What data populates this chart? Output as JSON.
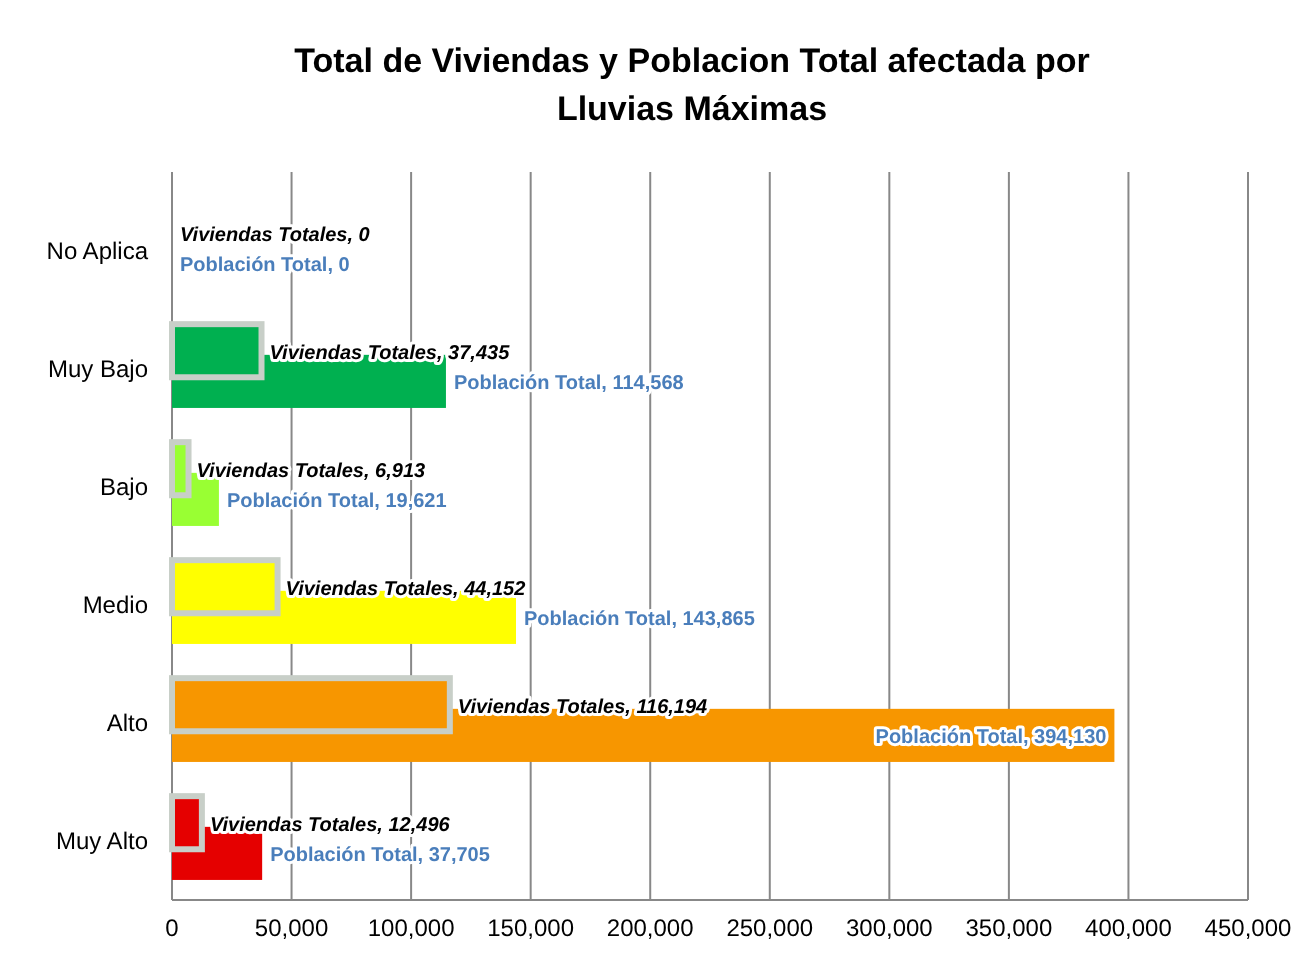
{
  "chart_data": {
    "type": "bar",
    "orientation": "horizontal",
    "title": "Total de Viviendas y Poblacion Total afectada por Lluvias Máximas",
    "categories": [
      "No Aplica",
      "Muy Bajo",
      "Bajo",
      "Medio",
      "Alto",
      "Muy Alto"
    ],
    "series": [
      {
        "values": [
          0,
          37435,
          6913,
          44152,
          116194,
          12496
        ],
        "colors": [
          "#00b050",
          "#00b050",
          "#99ff33",
          "#ffff00",
          "#f79600",
          "#e50000"
        ],
        "value_labels": [
          "Viviendas Totales, 0",
          "Viviendas Totales, 37,435",
          "Viviendas Totales, 6,913",
          "Viviendas Totales, 44,152",
          "Viviendas Totales, 116,194",
          "Viviendas Totales, 12,496"
        ]
      },
      {
        "values": [
          0,
          114568,
          19621,
          143865,
          394130,
          37705
        ],
        "colors": [
          "#00b050",
          "#00b050",
          "#99ff33",
          "#ffff00",
          "#f79600",
          "#e50000"
        ],
        "value_labels": [
          "Población Total, 0",
          "Población Total, 114,568",
          "Población Total, 19,621",
          "Población Total, 143,865",
          "Población Total, 394,130",
          "Población Total, 37,705"
        ]
      }
    ],
    "xlim": [
      0,
      450000
    ],
    "xticks": [
      0,
      {
        "value": 50000,
        "label": "50,000"
      },
      {
        "value": 100000,
        "label": "100,000"
      },
      {
        "value": 150000,
        "label": "150,000"
      },
      {
        "value": 200000,
        "label": "200,000"
      },
      {
        "value": 250000,
        "label": "250,000"
      },
      {
        "value": 300000,
        "label": "300,000"
      },
      {
        "value": 350000,
        "label": "350,000"
      },
      {
        "value": 400000,
        "label": "400,000"
      },
      {
        "value": 450000,
        "label": "450,000"
      }
    ],
    "grid": "x"
  }
}
